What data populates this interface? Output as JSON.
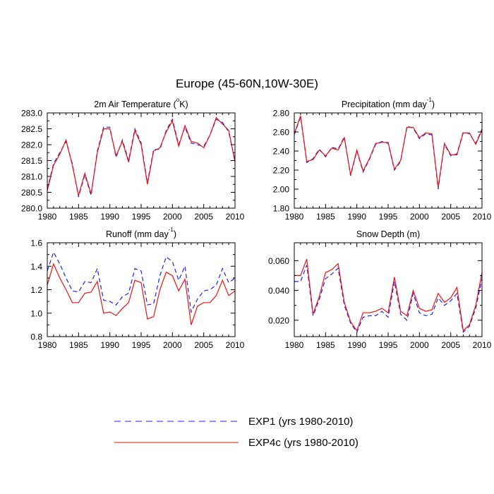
{
  "figure_title": "Europe (45-60N,10W-30E)",
  "legend": [
    {
      "label": "EXP1 (yrs 1980-2010)",
      "color": "#2222ee",
      "dash": "dashed"
    },
    {
      "label": "EXP4c (yrs 1980-2010)",
      "color": "#ee1111",
      "dash": "solid"
    }
  ],
  "chart_data": [
    {
      "type": "line",
      "title": "2m Air Temperature (°K)",
      "title_parts": {
        "pre": "2m Air Temperature (",
        "sup": "o",
        "post": "K)"
      },
      "x": [
        1980,
        1981,
        1982,
        1983,
        1984,
        1985,
        1986,
        1987,
        1988,
        1989,
        1990,
        1991,
        1992,
        1993,
        1994,
        1995,
        1996,
        1997,
        1998,
        1999,
        2000,
        2001,
        2002,
        2003,
        2004,
        2005,
        2006,
        2007,
        2008,
        2009,
        2010
      ],
      "xlim": [
        1980,
        2010
      ],
      "xticks": [
        "1980",
        "1985",
        "1990",
        "1995",
        "2000",
        "2005",
        "2010"
      ],
      "ylim": [
        280.0,
        283.0
      ],
      "yticks": [
        "280.0",
        "280.5",
        "281.0",
        "281.5",
        "282.0",
        "282.5",
        "283.0"
      ],
      "series": [
        {
          "name": "EXP1 (yrs 1980-2010)",
          "values": [
            280.6,
            281.4,
            281.75,
            282.1,
            281.4,
            280.35,
            281.05,
            280.4,
            281.8,
            282.55,
            282.55,
            281.6,
            282.15,
            281.5,
            282.5,
            282.05,
            280.8,
            281.85,
            281.85,
            282.45,
            282.8,
            282.0,
            282.55,
            282.05,
            282.0,
            281.95,
            282.3,
            282.8,
            282.7,
            282.4,
            281.5
          ]
        },
        {
          "name": "EXP4c (yrs 1980-2010)",
          "values": [
            280.55,
            281.35,
            281.7,
            282.15,
            281.35,
            280.4,
            281.1,
            280.45,
            281.75,
            282.5,
            282.5,
            281.65,
            282.1,
            281.45,
            282.45,
            282.0,
            280.75,
            281.8,
            281.9,
            282.4,
            282.75,
            281.95,
            282.6,
            282.1,
            282.05,
            281.9,
            282.3,
            282.85,
            282.65,
            282.45,
            281.45
          ]
        }
      ]
    },
    {
      "type": "line",
      "title": "Precipitation (mm day-1)",
      "title_parts": {
        "pre": "Precipitation (mm day",
        "sup": "-1",
        "post": ")"
      },
      "x": [
        1980,
        1981,
        1982,
        1983,
        1984,
        1985,
        1986,
        1987,
        1988,
        1989,
        1990,
        1991,
        1992,
        1993,
        1994,
        1995,
        1996,
        1997,
        1998,
        1999,
        2000,
        2001,
        2002,
        2003,
        2004,
        2005,
        2006,
        2007,
        2008,
        2009,
        2010
      ],
      "xlim": [
        1980,
        2010
      ],
      "xticks": [
        "1980",
        "1985",
        "1990",
        "1995",
        "2000",
        "2005",
        "2010"
      ],
      "ylim": [
        1.8,
        2.8
      ],
      "yticks": [
        "1.80",
        "2.00",
        "2.20",
        "2.40",
        "2.60",
        "2.80"
      ],
      "series": [
        {
          "name": "EXP1 (yrs 1980-2010)",
          "values": [
            2.57,
            2.76,
            2.28,
            2.32,
            2.42,
            2.34,
            2.44,
            2.42,
            2.55,
            2.14,
            2.4,
            2.18,
            2.31,
            2.47,
            2.5,
            2.48,
            2.2,
            2.29,
            2.66,
            2.64,
            2.53,
            2.58,
            2.57,
            2.0,
            2.47,
            2.35,
            2.37,
            2.6,
            2.58,
            2.48,
            2.63
          ]
        },
        {
          "name": "EXP4c (yrs 1980-2010)",
          "values": [
            2.58,
            2.77,
            2.29,
            2.31,
            2.41,
            2.35,
            2.43,
            2.41,
            2.54,
            2.15,
            2.41,
            2.19,
            2.32,
            2.48,
            2.49,
            2.49,
            2.21,
            2.3,
            2.65,
            2.65,
            2.54,
            2.59,
            2.58,
            2.02,
            2.48,
            2.36,
            2.36,
            2.59,
            2.59,
            2.47,
            2.62
          ]
        }
      ]
    },
    {
      "type": "line",
      "title": "Runoff (mm day-1)",
      "title_parts": {
        "pre": "Runoff (mm day",
        "sup": "-1",
        "post": ")"
      },
      "x": [
        1980,
        1981,
        1982,
        1983,
        1984,
        1985,
        1986,
        1987,
        1988,
        1989,
        1990,
        1991,
        1992,
        1993,
        1994,
        1995,
        1996,
        1997,
        1998,
        1999,
        2000,
        2001,
        2002,
        2003,
        2004,
        2005,
        2006,
        2007,
        2008,
        2009,
        2010
      ],
      "xlim": [
        1980,
        2010
      ],
      "xticks": [
        "1980",
        "1985",
        "1990",
        "1995",
        "2000",
        "2005",
        "2010"
      ],
      "ylim": [
        0.8,
        1.6
      ],
      "yticks": [
        "0.8",
        "1.0",
        "1.2",
        "1.4",
        "1.6"
      ],
      "series": [
        {
          "name": "EXP1 (yrs 1980-2010)",
          "values": [
            1.36,
            1.52,
            1.42,
            1.3,
            1.19,
            1.18,
            1.27,
            1.26,
            1.38,
            1.11,
            1.1,
            1.07,
            1.14,
            1.17,
            1.38,
            1.36,
            1.07,
            1.08,
            1.32,
            1.48,
            1.44,
            1.28,
            1.4,
            1.01,
            1.12,
            1.19,
            1.2,
            1.24,
            1.38,
            1.26,
            1.3
          ]
        },
        {
          "name": "EXP4c (yrs 1980-2010)",
          "values": [
            1.24,
            1.42,
            1.3,
            1.2,
            1.09,
            1.09,
            1.17,
            1.18,
            1.27,
            1.0,
            1.01,
            0.98,
            1.04,
            1.09,
            1.28,
            1.26,
            0.95,
            0.97,
            1.2,
            1.35,
            1.32,
            1.19,
            1.29,
            0.9,
            1.06,
            1.09,
            1.09,
            1.15,
            1.28,
            1.15,
            1.19
          ]
        }
      ]
    },
    {
      "type": "line",
      "title": "Snow Depth (m)",
      "title_parts": {
        "pre": "Snow Depth (m)",
        "sup": "",
        "post": ""
      },
      "x": [
        1980,
        1981,
        1982,
        1983,
        1984,
        1985,
        1986,
        1987,
        1988,
        1989,
        1990,
        1991,
        1992,
        1993,
        1994,
        1995,
        1996,
        1997,
        1998,
        1999,
        2000,
        2001,
        2002,
        2003,
        2004,
        2005,
        2006,
        2007,
        2008,
        2009,
        2010
      ],
      "xlim": [
        1980,
        2010
      ],
      "xticks": [
        "1980",
        "1985",
        "1990",
        "1995",
        "2000",
        "2005",
        "2010"
      ],
      "ylim": [
        0.009,
        0.072
      ],
      "yticks": [
        "0.020",
        "0.040",
        "0.060"
      ],
      "yticks_values": [
        0.02,
        0.04,
        0.06
      ],
      "series": [
        {
          "name": "EXP1 (yrs 1980-2010)",
          "values": [
            0.046,
            0.046,
            0.057,
            0.023,
            0.034,
            0.048,
            0.051,
            0.055,
            0.03,
            0.018,
            0.012,
            0.022,
            0.023,
            0.023,
            0.026,
            0.022,
            0.046,
            0.024,
            0.02,
            0.038,
            0.025,
            0.023,
            0.024,
            0.035,
            0.03,
            0.033,
            0.038,
            0.012,
            0.016,
            0.028,
            0.048
          ]
        },
        {
          "name": "EXP4c (yrs 1980-2010)",
          "values": [
            0.05,
            0.05,
            0.061,
            0.024,
            0.036,
            0.052,
            0.054,
            0.058,
            0.032,
            0.019,
            0.013,
            0.025,
            0.025,
            0.026,
            0.028,
            0.025,
            0.049,
            0.026,
            0.023,
            0.04,
            0.028,
            0.026,
            0.027,
            0.038,
            0.032,
            0.035,
            0.042,
            0.013,
            0.017,
            0.03,
            0.052
          ]
        }
      ]
    }
  ]
}
